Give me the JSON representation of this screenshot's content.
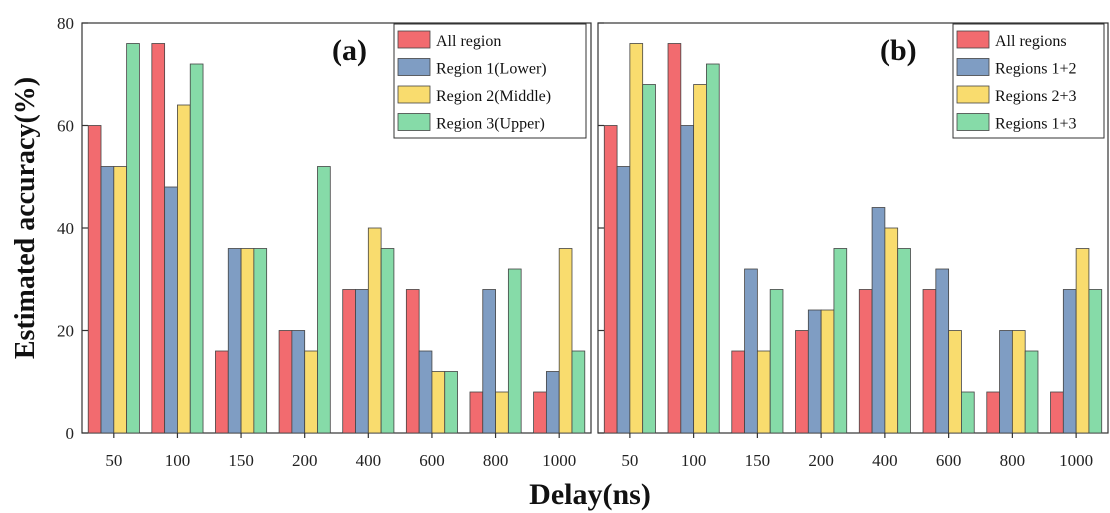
{
  "figure": {
    "ylabel": "Estimated accuracy(%)",
    "xlabel": "Delay(ns)"
  },
  "colors": [
    "#f26b6f",
    "#7f9dc3",
    "#f9dc6e",
    "#86dba8"
  ],
  "chart_data": [
    {
      "type": "bar",
      "panel_label": "(a)",
      "categories": [
        "50",
        "100",
        "150",
        "200",
        "400",
        "600",
        "800",
        "1000"
      ],
      "series": [
        {
          "name": "All region",
          "values": [
            60,
            76,
            16,
            20,
            28,
            28,
            8,
            8
          ]
        },
        {
          "name": "Region 1(Lower)",
          "values": [
            52,
            48,
            36,
            20,
            28,
            16,
            28,
            12
          ]
        },
        {
          "name": "Region 2(Middle)",
          "values": [
            52,
            64,
            36,
            16,
            40,
            12,
            8,
            36
          ]
        },
        {
          "name": "Region 3(Upper)",
          "values": [
            76,
            72,
            36,
            52,
            36,
            12,
            32,
            16
          ]
        }
      ],
      "ylim": [
        0,
        80
      ],
      "yticks": [
        "0",
        "20",
        "40",
        "60",
        "80"
      ],
      "legend_position": "top-right"
    },
    {
      "type": "bar",
      "panel_label": "(b)",
      "categories": [
        "50",
        "100",
        "150",
        "200",
        "400",
        "600",
        "800",
        "1000"
      ],
      "series": [
        {
          "name": "All regions",
          "values": [
            60,
            76,
            16,
            20,
            28,
            28,
            8,
            8
          ]
        },
        {
          "name": "Regions 1+2",
          "values": [
            52,
            60,
            32,
            24,
            44,
            32,
            20,
            28
          ]
        },
        {
          "name": "Regions 2+3",
          "values": [
            76,
            68,
            16,
            24,
            40,
            20,
            20,
            36
          ]
        },
        {
          "name": "Regions 1+3",
          "values": [
            68,
            72,
            28,
            36,
            36,
            8,
            16,
            28
          ]
        }
      ],
      "ylim": [
        0,
        80
      ],
      "yticks": [
        "0",
        "20",
        "40",
        "60",
        "80"
      ],
      "legend_position": "top-right"
    }
  ]
}
